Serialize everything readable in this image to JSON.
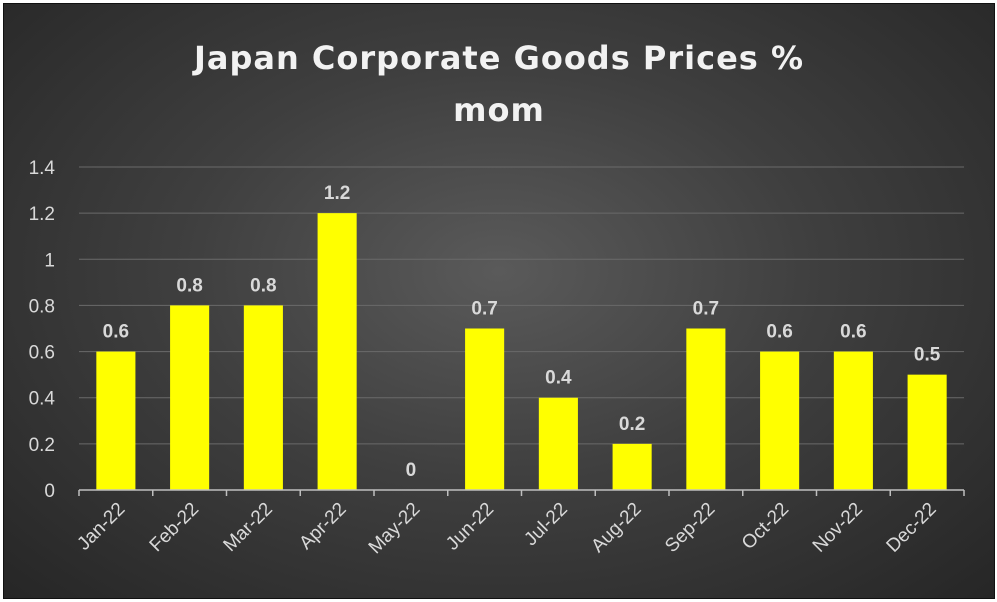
{
  "chart_data": {
    "type": "bar",
    "title_line1": "Japan Corporate Goods Prices %",
    "title_line2": "mom",
    "categories": [
      "Jan-22",
      "Feb-22",
      "Mar-22",
      "Apr-22",
      "May-22",
      "Jun-22",
      "Jul-22",
      "Aug-22",
      "Sep-22",
      "Oct-22",
      "Nov-22",
      "Dec-22"
    ],
    "values": [
      0.6,
      0.8,
      0.8,
      1.2,
      0,
      0.7,
      0.4,
      0.2,
      0.7,
      0.6,
      0.6,
      0.5
    ],
    "data_labels": [
      "0.6",
      "0.8",
      "0.8",
      "1.2",
      "0",
      "0.7",
      "0.4",
      "0.2",
      "0.7",
      "0.6",
      "0.6",
      "0.5"
    ],
    "ylim": [
      0,
      1.4
    ],
    "yticks": [
      0,
      0.2,
      0.4,
      0.6,
      0.8,
      1,
      1.2,
      1.4
    ],
    "ytick_labels": [
      "0",
      "0.2",
      "0.4",
      "0.6",
      "0.8",
      "1",
      "1.2",
      "1.4"
    ],
    "grid": true,
    "legend": "none",
    "colors": {
      "bar": "#ffff00",
      "background": "#3f3f3f",
      "gridline": "#6a6a6a",
      "text": "#d9d9d9",
      "title": "#f2f2f2"
    }
  }
}
